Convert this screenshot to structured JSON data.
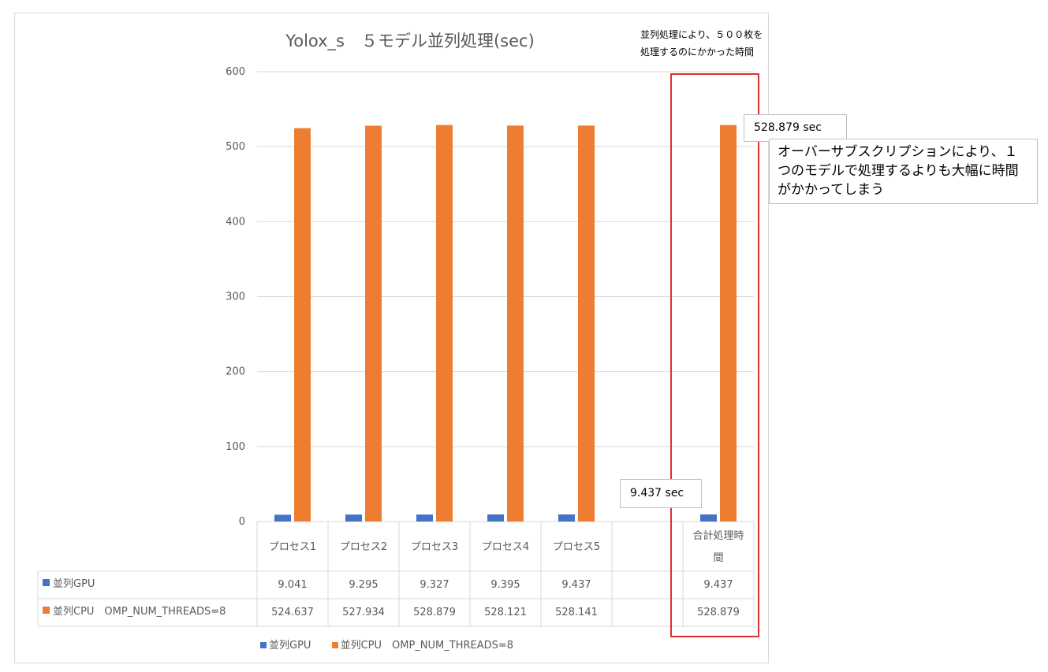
{
  "chart_data": {
    "type": "bar",
    "title": "Yolox_s　５モデル並列処理(sec)",
    "categories": [
      "プロセス1",
      "プロセス2",
      "プロセス3",
      "プロセス4",
      "プロセス5",
      "",
      "合計処理時間"
    ],
    "category_display": [
      [
        "プロセス1"
      ],
      [
        "プロセス2"
      ],
      [
        "プロセス3"
      ],
      [
        "プロセス4"
      ],
      [
        "プロセス5"
      ],
      [
        ""
      ],
      [
        "合計処理時",
        "間"
      ]
    ],
    "series": [
      {
        "name": "並列GPU",
        "color": "#4472c4",
        "values": [
          9.041,
          9.295,
          9.327,
          9.395,
          9.437,
          null,
          9.437
        ],
        "labels": [
          "9.041",
          "9.295",
          "9.327",
          "9.395",
          "9.437",
          "",
          "9.437"
        ]
      },
      {
        "name": "並列CPU　OMP_NUM_THREADS=8",
        "color": "#ed7d31",
        "values": [
          524.637,
          527.934,
          528.879,
          528.121,
          528.141,
          null,
          528.879
        ],
        "labels": [
          "524.637",
          "527.934",
          "528.879",
          "528.121",
          "528.141",
          "",
          "528.879"
        ]
      }
    ],
    "ylim": [
      0,
      600
    ],
    "yticks": [
      "0",
      "100",
      "200",
      "300",
      "400",
      "500",
      "600"
    ],
    "grid": true,
    "legend_position": "bottom"
  },
  "annotations": {
    "top_note_line1": "並列処理により、５００枚を",
    "top_note_line2": "処理するのにかかった時間",
    "total_callout": "528.879 sec",
    "gpu_callout": "9.437 sec",
    "warning": "オーバーサブスクリプションにより、１つのモデルで処理するよりも大幅に時間がかかってしまう",
    "highlight_color": "#e03030"
  }
}
